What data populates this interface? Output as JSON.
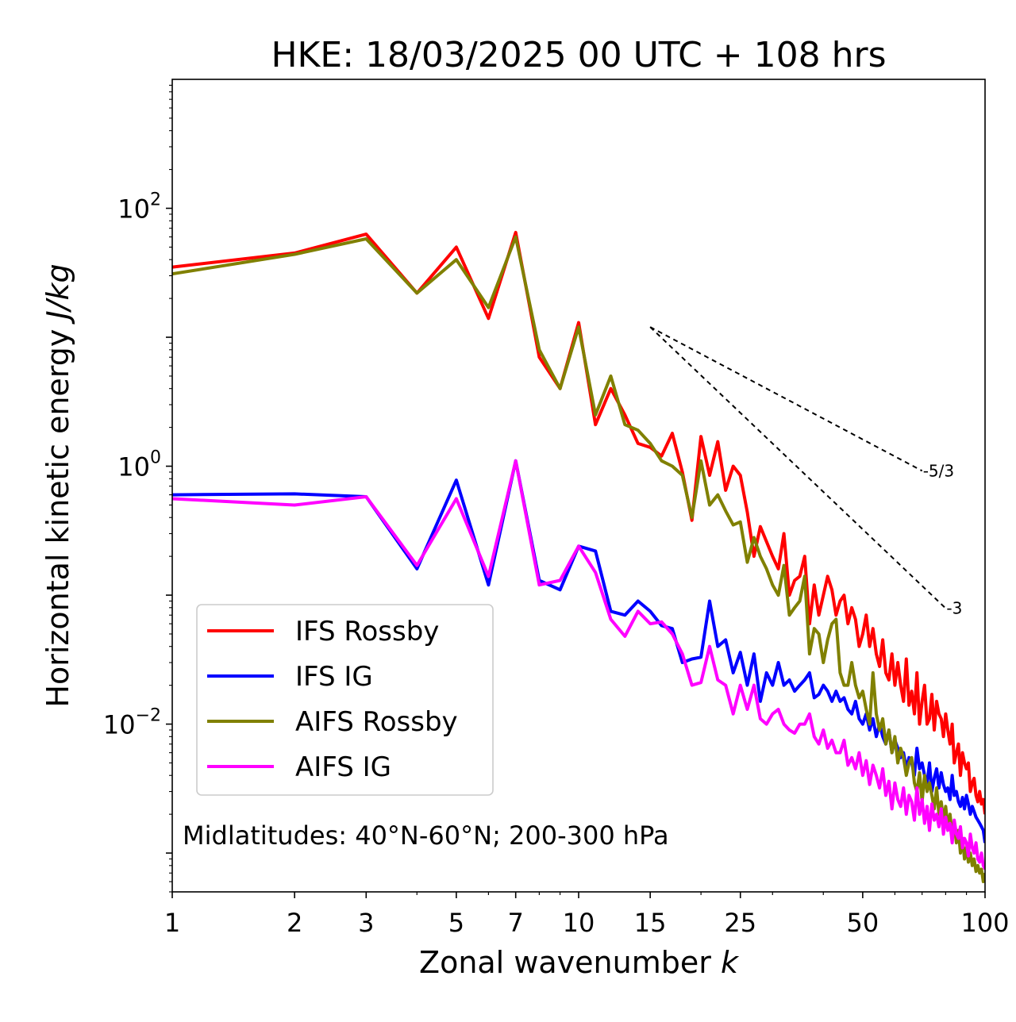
{
  "chart_data": {
    "type": "line",
    "title": "HKE: 18/03/2025 00 UTC + 108 hrs",
    "xlabel": "Zonal wavenumber",
    "xlabel_var": "k",
    "ylabel": "Horizontal kinetic energy",
    "ylabel_units": "J/kg",
    "xscale": "log",
    "yscale": "log",
    "xlim": [
      1,
      100
    ],
    "ylim": [
      0.0005,
      1000
    ],
    "x_ticks": [
      1,
      2,
      3,
      5,
      7,
      10,
      15,
      25,
      50,
      100
    ],
    "x_tick_labels": [
      "1",
      "2",
      "3",
      "5",
      "7",
      "10",
      "15",
      "25",
      "50",
      "100"
    ],
    "y_ticks": [
      {
        "value": 100,
        "base": "10",
        "exp": "2"
      },
      {
        "value": 1,
        "base": "10",
        "exp": "0"
      },
      {
        "value": 0.01,
        "base": "10",
        "exp": "−2"
      }
    ],
    "grid": false,
    "legend_position": "lower-left",
    "annotation": "Midlatitudes: 40°N-60°N; 200-300 hPa",
    "reference_slopes": [
      {
        "label": "-5/3",
        "slope": -1.6667,
        "x_start": 15,
        "x_end": 70,
        "y_start": 12
      },
      {
        "label": "-3",
        "slope": -3,
        "x_start": 15,
        "x_end": 80,
        "y_start": 12
      }
    ],
    "series": [
      {
        "name": "IFS Rossby",
        "color": "#ff0000",
        "x": [
          1,
          2,
          3,
          4,
          5,
          6,
          7,
          8,
          9,
          10,
          11,
          12,
          13,
          14,
          15,
          16,
          17,
          18,
          19,
          20,
          21,
          22,
          23,
          24,
          25,
          26,
          27,
          28,
          29,
          30,
          31,
          32,
          33,
          34,
          35,
          36,
          37,
          38,
          39,
          40,
          41,
          42,
          43,
          44,
          45,
          46,
          47,
          48,
          49,
          50,
          51,
          52,
          53,
          54,
          55,
          56,
          57,
          58,
          59,
          60,
          61,
          62,
          63,
          64,
          65,
          66,
          67,
          68,
          69,
          70,
          71,
          72,
          73,
          74,
          75,
          76,
          77,
          78,
          79,
          80,
          81,
          82,
          83,
          84,
          85,
          86,
          87,
          88,
          89,
          90,
          91,
          92,
          93,
          94,
          95,
          96,
          97,
          98,
          99,
          100
        ],
        "y": [
          35,
          45,
          63,
          22,
          50,
          14,
          65,
          7,
          4,
          13,
          2.1,
          4,
          2.5,
          1.5,
          1.4,
          1.2,
          1.8,
          0.9,
          0.38,
          1.7,
          0.85,
          1.55,
          0.65,
          1.0,
          0.85,
          0.44,
          0.2,
          0.34,
          0.26,
          0.2,
          0.16,
          0.3,
          0.1,
          0.13,
          0.14,
          0.2,
          0.06,
          0.12,
          0.07,
          0.1,
          0.14,
          0.11,
          0.07,
          0.09,
          0.1,
          0.06,
          0.08,
          0.065,
          0.04,
          0.05,
          0.07,
          0.04,
          0.055,
          0.035,
          0.028,
          0.045,
          0.025,
          0.022,
          0.035,
          0.02,
          0.03,
          0.02,
          0.015,
          0.032,
          0.014,
          0.018,
          0.012,
          0.025,
          0.01,
          0.015,
          0.02,
          0.01,
          0.011,
          0.017,
          0.009,
          0.015,
          0.012,
          0.011,
          0.008,
          0.012,
          0.009,
          0.007,
          0.01,
          0.005,
          0.006,
          0.007,
          0.004,
          0.006,
          0.005,
          0.0045,
          0.005,
          0.003,
          0.0035,
          0.0038,
          0.0028,
          0.0025,
          0.003,
          0.0024,
          0.0026,
          0.002
        ]
      },
      {
        "name": "IFS IG",
        "color": "#0000ff",
        "x": [
          1,
          2,
          3,
          4,
          5,
          6,
          7,
          8,
          9,
          10,
          11,
          12,
          13,
          14,
          15,
          16,
          17,
          18,
          19,
          20,
          21,
          22,
          23,
          24,
          25,
          26,
          27,
          28,
          29,
          30,
          31,
          32,
          33,
          34,
          35,
          36,
          37,
          38,
          39,
          40,
          41,
          42,
          43,
          44,
          45,
          46,
          47,
          48,
          49,
          50,
          51,
          52,
          53,
          54,
          55,
          56,
          57,
          58,
          59,
          60,
          61,
          62,
          63,
          64,
          65,
          66,
          67,
          68,
          69,
          70,
          71,
          72,
          73,
          74,
          75,
          76,
          77,
          78,
          79,
          80,
          81,
          82,
          83,
          84,
          85,
          86,
          87,
          88,
          89,
          90,
          91,
          92,
          93,
          94,
          95,
          96,
          97,
          98,
          99,
          100
        ],
        "y": [
          0.6,
          0.61,
          0.58,
          0.16,
          0.78,
          0.12,
          1.1,
          0.13,
          0.11,
          0.24,
          0.22,
          0.075,
          0.07,
          0.09,
          0.075,
          0.058,
          0.055,
          0.03,
          0.032,
          0.033,
          0.09,
          0.04,
          0.045,
          0.025,
          0.036,
          0.02,
          0.035,
          0.015,
          0.025,
          0.02,
          0.03,
          0.02,
          0.022,
          0.018,
          0.02,
          0.022,
          0.025,
          0.016,
          0.017,
          0.02,
          0.018,
          0.015,
          0.018,
          0.015,
          0.016,
          0.013,
          0.012,
          0.015,
          0.011,
          0.01,
          0.012,
          0.009,
          0.011,
          0.008,
          0.01,
          0.008,
          0.007,
          0.009,
          0.006,
          0.0075,
          0.0065,
          0.0055,
          0.006,
          0.0045,
          0.0055,
          0.005,
          0.004,
          0.0065,
          0.0045,
          0.005,
          0.004,
          0.0035,
          0.005,
          0.003,
          0.0038,
          0.0045,
          0.0032,
          0.0042,
          0.0034,
          0.003,
          0.0032,
          0.0026,
          0.004,
          0.0028,
          0.003,
          0.0025,
          0.0023,
          0.0027,
          0.0022,
          0.0028,
          0.0024,
          0.002,
          0.0023,
          0.0021,
          0.0019,
          0.0018,
          0.0017,
          0.0016,
          0.0015,
          0.0012
        ]
      },
      {
        "name": "AIFS Rossby",
        "color": "#808000",
        "x": [
          1,
          2,
          3,
          4,
          5,
          6,
          7,
          8,
          9,
          10,
          11,
          12,
          13,
          14,
          15,
          16,
          17,
          18,
          19,
          20,
          21,
          22,
          23,
          24,
          25,
          26,
          27,
          28,
          29,
          30,
          31,
          32,
          33,
          34,
          35,
          36,
          37,
          38,
          39,
          40,
          41,
          42,
          43,
          44,
          45,
          46,
          47,
          48,
          49,
          50,
          51,
          52,
          53,
          54,
          55,
          56,
          57,
          58,
          59,
          60,
          61,
          62,
          63,
          64,
          65,
          66,
          67,
          68,
          69,
          70,
          71,
          72,
          73,
          74,
          75,
          76,
          77,
          78,
          79,
          80,
          81,
          82,
          83,
          84,
          85,
          86,
          87,
          88,
          89,
          90,
          91,
          92,
          93,
          94,
          95,
          96,
          97,
          98,
          99,
          100
        ],
        "y": [
          31,
          44,
          58,
          22,
          40,
          17,
          60,
          8,
          4,
          12,
          2.5,
          5,
          2.1,
          1.9,
          1.5,
          1.1,
          1.0,
          0.85,
          0.4,
          1.1,
          0.5,
          0.6,
          0.45,
          0.35,
          0.37,
          0.18,
          0.28,
          0.2,
          0.16,
          0.12,
          0.1,
          0.17,
          0.07,
          0.08,
          0.09,
          0.14,
          0.035,
          0.055,
          0.05,
          0.03,
          0.045,
          0.06,
          0.065,
          0.025,
          0.02,
          0.02,
          0.03,
          0.02,
          0.016,
          0.018,
          0.013,
          0.01,
          0.025,
          0.012,
          0.009,
          0.011,
          0.007,
          0.009,
          0.006,
          0.008,
          0.005,
          0.0065,
          0.0055,
          0.004,
          0.005,
          0.0055,
          0.0035,
          0.003,
          0.0042,
          0.0025,
          0.004,
          0.003,
          0.0035,
          0.0028,
          0.0022,
          0.0032,
          0.002,
          0.0025,
          0.0018,
          0.0023,
          0.0016,
          0.002,
          0.0014,
          0.0017,
          0.0012,
          0.0015,
          0.001,
          0.0013,
          0.0009,
          0.0011,
          0.00085,
          0.001,
          0.0008,
          0.0009,
          0.00072,
          0.0008,
          0.0007,
          0.00075,
          0.0006,
          0.0007
        ]
      },
      {
        "name": "AIFS IG",
        "color": "#ff00ff",
        "x": [
          1,
          2,
          3,
          4,
          5,
          6,
          7,
          8,
          9,
          10,
          11,
          12,
          13,
          14,
          15,
          16,
          17,
          18,
          19,
          20,
          21,
          22,
          23,
          24,
          25,
          26,
          27,
          28,
          29,
          30,
          31,
          32,
          33,
          34,
          35,
          36,
          37,
          38,
          39,
          40,
          41,
          42,
          43,
          44,
          45,
          46,
          47,
          48,
          49,
          50,
          51,
          52,
          53,
          54,
          55,
          56,
          57,
          58,
          59,
          60,
          61,
          62,
          63,
          64,
          65,
          66,
          67,
          68,
          69,
          70,
          71,
          72,
          73,
          74,
          75,
          76,
          77,
          78,
          79,
          80,
          81,
          82,
          83,
          84,
          85,
          86,
          87,
          88,
          89,
          90,
          91,
          92,
          93,
          94,
          95,
          96,
          97,
          98,
          99,
          100
        ],
        "y": [
          0.56,
          0.5,
          0.58,
          0.17,
          0.56,
          0.14,
          1.1,
          0.12,
          0.13,
          0.24,
          0.15,
          0.065,
          0.048,
          0.075,
          0.06,
          0.062,
          0.05,
          0.035,
          0.02,
          0.021,
          0.04,
          0.022,
          0.02,
          0.012,
          0.02,
          0.013,
          0.02,
          0.011,
          0.01,
          0.012,
          0.013,
          0.01,
          0.009,
          0.0085,
          0.01,
          0.01,
          0.012,
          0.008,
          0.007,
          0.009,
          0.0065,
          0.0075,
          0.006,
          0.006,
          0.0075,
          0.0048,
          0.0055,
          0.0045,
          0.006,
          0.004,
          0.0052,
          0.0034,
          0.0048,
          0.004,
          0.0032,
          0.0045,
          0.0028,
          0.0036,
          0.0022,
          0.0035,
          0.0026,
          0.0023,
          0.0032,
          0.002,
          0.0028,
          0.0025,
          0.0018,
          0.0032,
          0.002,
          0.0026,
          0.0017,
          0.0023,
          0.0015,
          0.0024,
          0.0018,
          0.002,
          0.0016,
          0.0022,
          0.0014,
          0.0019,
          0.0015,
          0.0017,
          0.0012,
          0.0018,
          0.0014,
          0.0013,
          0.0016,
          0.0011,
          0.0013,
          0.0012,
          0.00095,
          0.0014,
          0.0011,
          0.001,
          0.0012,
          0.0009,
          0.00085,
          0.001,
          0.0008,
          0.00075
        ]
      }
    ]
  }
}
